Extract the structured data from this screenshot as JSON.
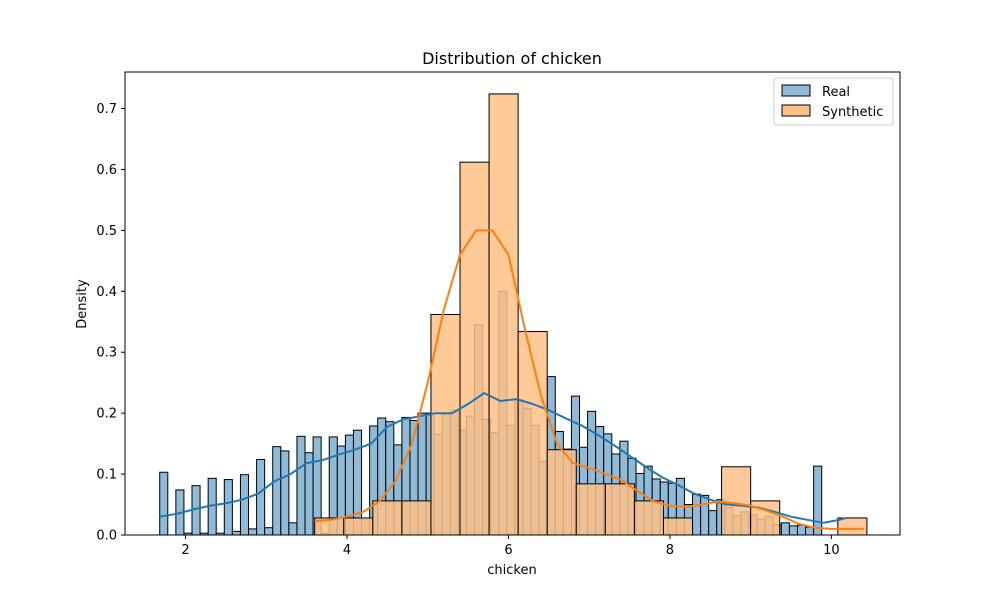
{
  "chart_data": {
    "type": "histogram",
    "title": "Distribution of chicken",
    "xlabel": "chicken",
    "ylabel": "Density",
    "xlim": [
      1.25,
      10.85
    ],
    "ylim": [
      0,
      0.76
    ],
    "xticks": [
      2,
      4,
      6,
      8,
      10
    ],
    "yticks": [
      0.0,
      0.1,
      0.2,
      0.3,
      0.4,
      0.5,
      0.6,
      0.7
    ],
    "grid": false,
    "legend_position": "top-right",
    "series": [
      {
        "name": "Real",
        "kind": "histogram-with-kde",
        "color": "#1f77b4",
        "bar_fill": "#8fbbd9",
        "bar_edge": "#000000",
        "bin_start": 1.68,
        "bin_width": 0.1,
        "densities": [
          0.103,
          0.0,
          0.074,
          0.003,
          0.081,
          0.003,
          0.093,
          0.003,
          0.091,
          0.006,
          0.099,
          0.01,
          0.124,
          0.012,
          0.145,
          0.138,
          0.02,
          0.162,
          0.135,
          0.161,
          0.003,
          0.161,
          0.146,
          0.164,
          0.172,
          0.025,
          0.179,
          0.192,
          0.186,
          0.148,
          0.193,
          0.188,
          0.2,
          0.2,
          0.165,
          0.198,
          0.205,
          0.172,
          0.195,
          0.345,
          0.19,
          0.168,
          0.4,
          0.18,
          0.222,
          0.208,
          0.18,
          0.121,
          0.26,
          0.17,
          0.141,
          0.228,
          0.144,
          0.203,
          0.178,
          0.166,
          0.133,
          0.154,
          0.126,
          0.101,
          0.113,
          0.092,
          0.087,
          0.085,
          0.093,
          0.05,
          0.067,
          0.065,
          0.04,
          0.058,
          0.045,
          0.032,
          0.038,
          0.033,
          0.026,
          0.03,
          0.017,
          0.02,
          0.015,
          0.016,
          0.013,
          0.113
        ],
        "kde": {
          "x": [
            1.68,
            1.9,
            2.1,
            2.3,
            2.5,
            2.7,
            2.9,
            3.1,
            3.3,
            3.5,
            3.7,
            3.9,
            4.1,
            4.3,
            4.5,
            4.7,
            4.9,
            5.1,
            5.3,
            5.5,
            5.7,
            5.9,
            6.1,
            6.3,
            6.5,
            6.7,
            6.9,
            7.1,
            7.3,
            7.5,
            7.7,
            7.9,
            8.1,
            8.3,
            8.5,
            8.7,
            8.9,
            9.1,
            9.3,
            9.5,
            9.7,
            9.9,
            10.1,
            10.18
          ],
          "y": [
            0.03,
            0.035,
            0.042,
            0.048,
            0.052,
            0.058,
            0.068,
            0.088,
            0.1,
            0.118,
            0.123,
            0.132,
            0.14,
            0.15,
            0.178,
            0.19,
            0.195,
            0.2,
            0.2,
            0.215,
            0.233,
            0.22,
            0.223,
            0.215,
            0.205,
            0.192,
            0.18,
            0.165,
            0.148,
            0.13,
            0.112,
            0.095,
            0.082,
            0.068,
            0.058,
            0.05,
            0.048,
            0.045,
            0.038,
            0.03,
            0.025,
            0.02,
            0.025,
            0.028
          ]
        }
      },
      {
        "name": "Synthetic",
        "kind": "histogram-with-kde",
        "color": "#ff7f0e",
        "bar_fill": "#ffbf86",
        "bar_edge": "#000000",
        "bin_start": 3.6,
        "bin_width": 0.36,
        "densities": [
          0.028,
          0.028,
          0.056,
          0.056,
          0.362,
          0.612,
          0.724,
          0.334,
          0.14,
          0.084,
          0.084,
          0.056,
          0.028,
          0.0,
          0.112,
          0.056,
          0.0,
          0.0,
          0.028
        ],
        "kde": {
          "x": [
            3.6,
            3.8,
            4.0,
            4.2,
            4.4,
            4.6,
            4.8,
            5.0,
            5.2,
            5.4,
            5.6,
            5.8,
            6.0,
            6.2,
            6.4,
            6.6,
            6.8,
            7.0,
            7.2,
            7.4,
            7.6,
            7.8,
            8.0,
            8.2,
            8.4,
            8.6,
            8.8,
            9.0,
            9.2,
            9.4,
            9.6,
            9.8,
            10.0,
            10.2,
            10.4
          ],
          "y": [
            0.023,
            0.025,
            0.03,
            0.038,
            0.055,
            0.088,
            0.148,
            0.25,
            0.37,
            0.46,
            0.5,
            0.5,
            0.46,
            0.34,
            0.23,
            0.15,
            0.118,
            0.11,
            0.1,
            0.09,
            0.072,
            0.055,
            0.048,
            0.046,
            0.05,
            0.055,
            0.052,
            0.048,
            0.04,
            0.03,
            0.018,
            0.012,
            0.01,
            0.01,
            0.01
          ]
        }
      }
    ]
  }
}
